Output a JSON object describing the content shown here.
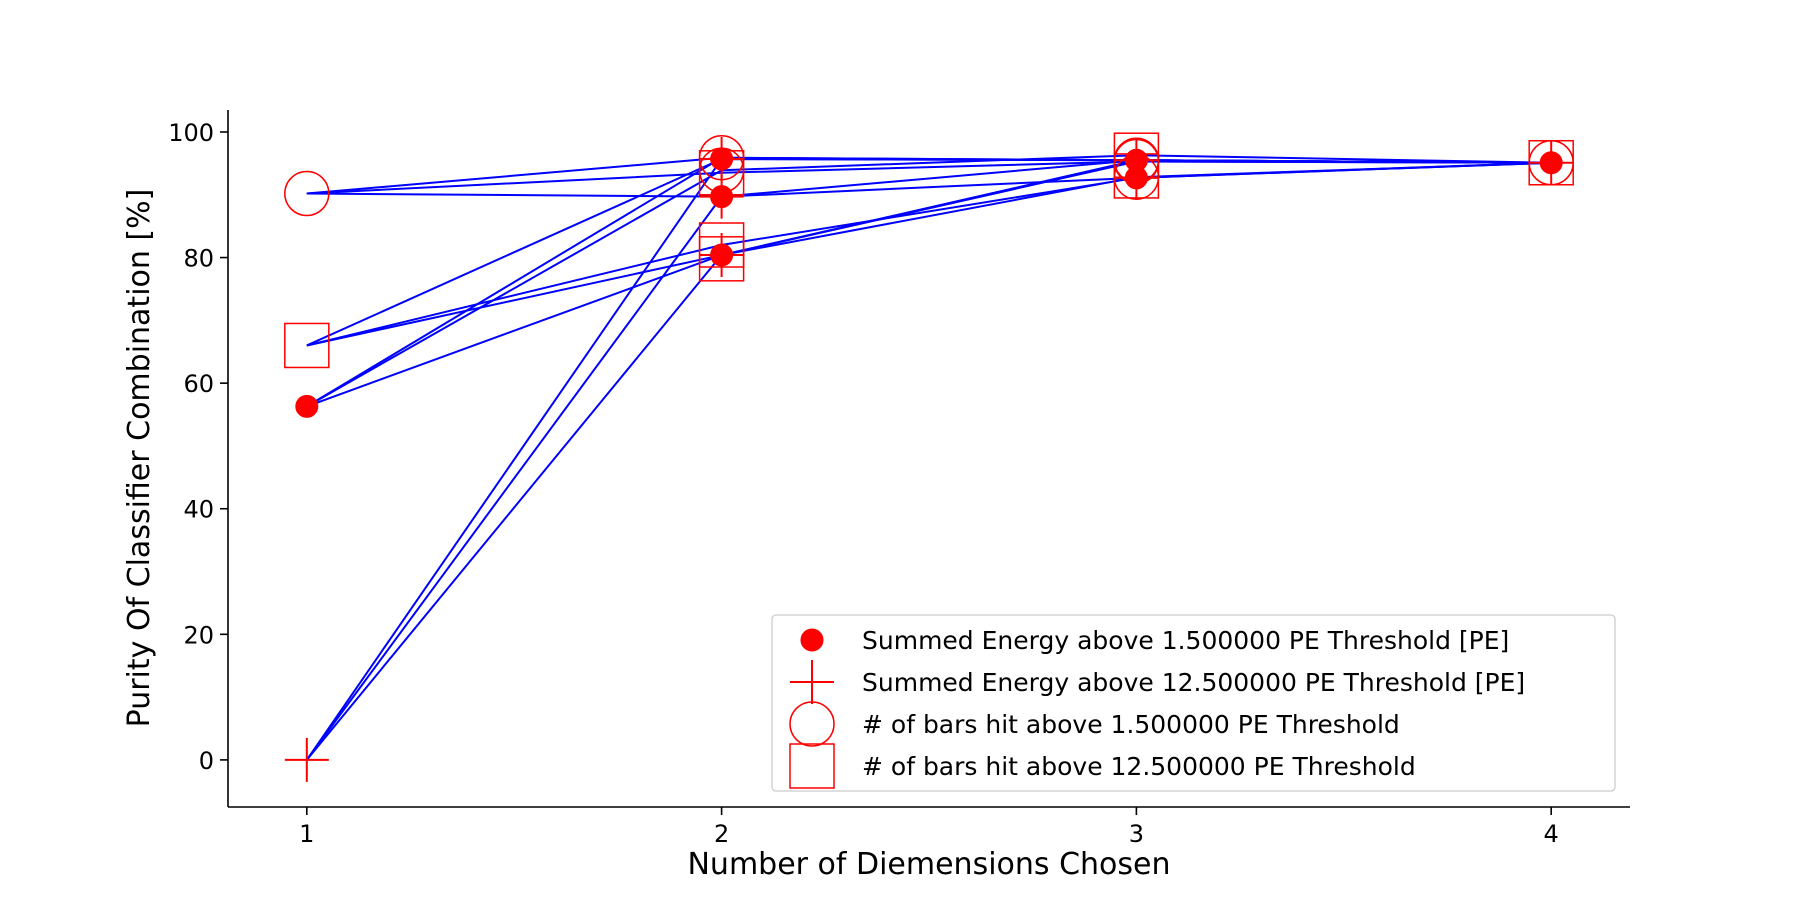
{
  "chart_data": {
    "type": "scatter",
    "xlabel": "Number of Diemensions Chosen",
    "ylabel": "Purity Of Classifier Combination [%]",
    "xlim": [
      0.81,
      4.19
    ],
    "ylim": [
      -7.5,
      103.5
    ],
    "xticks": [
      "1",
      "2",
      "3",
      "4"
    ],
    "yticks": [
      "0",
      "20",
      "40",
      "60",
      "80",
      "100"
    ],
    "grid": false,
    "legend_position": "lower-right",
    "line_color": "#0000ff",
    "marker_color": "#ff0000",
    "series": [
      {
        "name": "Summed Energy above 1.500000 PE Threshold [PE]",
        "marker": "filled-circle",
        "points": [
          [
            1,
            56.3
          ],
          [
            2,
            95.7
          ],
          [
            2,
            89.7
          ],
          [
            2,
            80.4
          ],
          [
            3,
            95.5
          ],
          [
            3,
            92.7
          ],
          [
            4,
            95.1
          ]
        ]
      },
      {
        "name": "Summed Energy above 12.500000 PE Threshold [PE]",
        "marker": "plus",
        "points": [
          [
            1,
            0
          ],
          [
            2,
            95.7
          ],
          [
            2,
            89.7
          ],
          [
            2,
            80.4
          ],
          [
            3,
            95.5
          ],
          [
            3,
            92.7
          ],
          [
            4,
            95.1
          ]
        ]
      },
      {
        "name": "# of bars hit above 1.500000 PE Threshold",
        "marker": "open-circle",
        "points": [
          [
            1,
            90.2
          ],
          [
            2,
            95.9
          ],
          [
            2,
            93.9
          ],
          [
            3,
            95.5
          ],
          [
            3,
            95.3
          ],
          [
            3,
            92.8
          ],
          [
            4,
            95.1
          ]
        ]
      },
      {
        "name": "# of bars hit above 12.500000 PE Threshold",
        "marker": "open-square",
        "points": [
          [
            1,
            66.0
          ],
          [
            2,
            93.5
          ],
          [
            2,
            82.0
          ],
          [
            2,
            79.8
          ],
          [
            3,
            96.3
          ],
          [
            3,
            93.0
          ],
          [
            4,
            95.1
          ]
        ]
      }
    ],
    "lines": [
      [
        [
          1,
          90.2
        ],
        [
          2,
          95.9
        ],
        [
          3,
          95.5
        ],
        [
          4,
          95.1
        ]
      ],
      [
        [
          1,
          90.2
        ],
        [
          2,
          93.5
        ],
        [
          3,
          95.3
        ],
        [
          4,
          95.1
        ]
      ],
      [
        [
          1,
          90.2
        ],
        [
          2,
          89.7
        ],
        [
          3,
          95.5
        ],
        [
          4,
          95.1
        ]
      ],
      [
        [
          1,
          66.0
        ],
        [
          2,
          95.7
        ],
        [
          3,
          95.5
        ],
        [
          4,
          95.1
        ]
      ],
      [
        [
          1,
          66.0
        ],
        [
          2,
          82.0
        ],
        [
          3,
          92.7
        ],
        [
          4,
          95.1
        ]
      ],
      [
        [
          1,
          66.0
        ],
        [
          2,
          80.4
        ],
        [
          3,
          95.3
        ],
        [
          4,
          95.1
        ]
      ],
      [
        [
          1,
          56.3
        ],
        [
          2,
          95.9
        ],
        [
          3,
          95.5
        ],
        [
          4,
          95.1
        ]
      ],
      [
        [
          1,
          56.3
        ],
        [
          2,
          93.9
        ],
        [
          3,
          96.3
        ],
        [
          4,
          95.1
        ]
      ],
      [
        [
          1,
          56.3
        ],
        [
          2,
          80.4
        ],
        [
          3,
          92.8
        ],
        [
          4,
          95.1
        ]
      ],
      [
        [
          1,
          0
        ],
        [
          2,
          95.7
        ],
        [
          3,
          95.5
        ],
        [
          4,
          95.1
        ]
      ],
      [
        [
          1,
          0
        ],
        [
          2,
          89.7
        ],
        [
          3,
          92.7
        ],
        [
          4,
          95.1
        ]
      ],
      [
        [
          1,
          0
        ],
        [
          2,
          80.4
        ],
        [
          3,
          95.5
        ],
        [
          4,
          95.1
        ]
      ]
    ]
  }
}
